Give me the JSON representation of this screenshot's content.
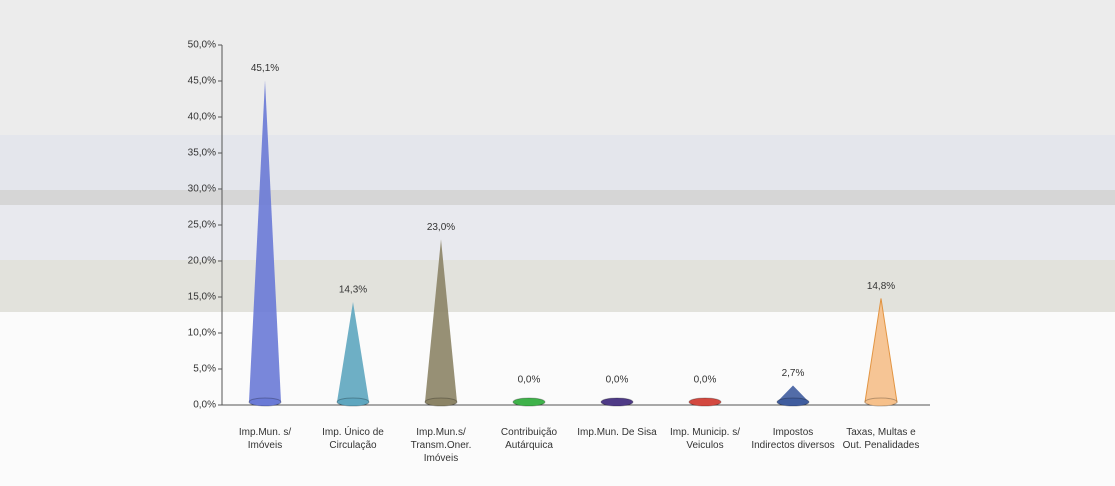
{
  "chart_data": {
    "type": "cone",
    "categories": [
      "Imp.Mun. s/ Imóveis",
      "Imp. Único de Circulação",
      "Imp.Mun.s/ Transm.Oner. Imóveis",
      "Contribuição Autárquica",
      "Imp.Mun. De Sisa",
      "Imp. Municip. s/ Veiculos",
      "Impostos Indirectos diversos",
      "Taxas, Multas e Out. Penalidades"
    ],
    "values": [
      45.1,
      14.3,
      23.0,
      0.0,
      0.0,
      0.0,
      2.7,
      14.8
    ],
    "value_labels": [
      "45,1%",
      "14,3%",
      "23,0%",
      "0,0%",
      "0,0%",
      "0,0%",
      "2,7%",
      "14,8%"
    ],
    "colors": [
      "#6a7ad6",
      "#5ea6bf",
      "#8c8466",
      "#3fb24a",
      "#4e3a86",
      "#d3483f",
      "#3f5c9e",
      "#f6c08a"
    ],
    "ylim": [
      0,
      50
    ],
    "yticks": [
      {
        "value": 0,
        "label": "0,0%"
      },
      {
        "value": 5,
        "label": "5,0%"
      },
      {
        "value": 10,
        "label": "10,0%"
      },
      {
        "value": 15,
        "label": "15,0%"
      },
      {
        "value": 20,
        "label": "20,0%"
      },
      {
        "value": 25,
        "label": "25,0%"
      },
      {
        "value": 30,
        "label": "30,0%"
      },
      {
        "value": 35,
        "label": "35,0%"
      },
      {
        "value": 40,
        "label": "40,0%"
      },
      {
        "value": 45,
        "label": "45,0%"
      },
      {
        "value": 50,
        "label": "50,0%"
      }
    ]
  }
}
